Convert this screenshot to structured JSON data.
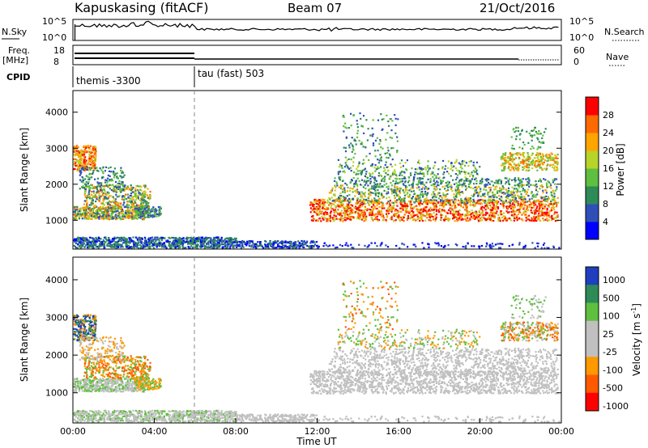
{
  "header": {
    "station": "Kapuskasing (fitACF)",
    "beam": "Beam 07",
    "date": "21/Oct/2016"
  },
  "strip_labels": {
    "nsky": "N.Sky",
    "nsearch": "N.Search",
    "freq": "Freq.",
    "mhz": "[MHz]",
    "nave": "Nave",
    "cpid": "CPID",
    "nsky_ticks": [
      "10^5",
      "10^0"
    ],
    "nsearch_ticks": [
      "10^5",
      "10^0"
    ],
    "freq_ticks": [
      "18",
      "8"
    ],
    "nave_ticks": [
      "60",
      "0"
    ]
  },
  "cpid": {
    "segments": [
      {
        "start_hour": 0,
        "label": "themis -3300"
      },
      {
        "start_hour": 6,
        "label": "tau (fast) 503"
      }
    ]
  },
  "colors": {
    "power_scale": [
      "#0000ff",
      "#2f4fb8",
      "#2e8b57",
      "#5fbf3f",
      "#b8d42a",
      "#ffa500",
      "#ff6a00",
      "#ff0000"
    ],
    "velocity_scale": [
      "#1f3fbf",
      "#2e8b57",
      "#5fbf3f",
      "#c0c0c0",
      "#c0c0c0",
      "#ff9900",
      "#ff5a00",
      "#ff0000"
    ]
  },
  "chart_data": [
    {
      "type": "heatmap",
      "name": "power",
      "ylabel": "Slant Range [km]",
      "ylim": [
        200,
        4600
      ],
      "yticks": [
        "1000",
        "2000",
        "3000",
        "4000"
      ],
      "xlim_hours": [
        0,
        24
      ],
      "colorbar_label": "Power [dB]",
      "colorbar_ticks": [
        "4",
        "8",
        "12",
        "16",
        "20",
        "24",
        "28"
      ],
      "grid": "dashed vertical line at 06:00"
    },
    {
      "type": "heatmap",
      "name": "velocity",
      "ylabel": "Slant Range [km]",
      "ylim": [
        200,
        4600
      ],
      "yticks": [
        "1000",
        "2000",
        "3000",
        "4000"
      ],
      "xlim_hours": [
        0,
        24
      ],
      "colorbar_label": "Velocity [m s",
      "colorbar_sup": "-1",
      "colorbar_close": "]",
      "colorbar_ticks": [
        "1000",
        "500",
        "100",
        "25",
        "-25",
        "-100",
        "-500",
        "-1000"
      ],
      "xticks": [
        "00:00",
        "04:00",
        "08:00",
        "12:00",
        "16:00",
        "20:00",
        "00:00"
      ],
      "xlabel": "Time UT"
    }
  ]
}
